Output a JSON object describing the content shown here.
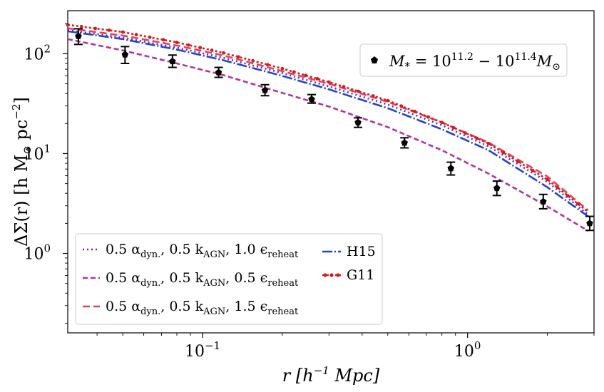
{
  "chart_data": {
    "type": "line",
    "xscale": "log",
    "yscale": "log",
    "xlim": [
      0.031,
      3.0
    ],
    "ylim": [
      0.16,
      270
    ],
    "xlabel": "r [h⁻¹ Mpc]",
    "ylabel": "ΔΣ(r) [h M⊙ pc⁻²]",
    "x_ticks": [
      {
        "value": 0.1,
        "base": "10",
        "exp": "−1"
      },
      {
        "value": 1.0,
        "base": "10",
        "exp": "0"
      }
    ],
    "y_ticks": [
      {
        "value": 1,
        "base": "10",
        "exp": "0"
      },
      {
        "value": 10,
        "base": "10",
        "exp": "1"
      },
      {
        "value": 100,
        "base": "10",
        "exp": "2"
      }
    ],
    "observations": {
      "label_main": "M",
      "label_sub": "*",
      "label_mid": " = 10",
      "label_exp1": "11.2",
      "label_dash": " − 10",
      "label_exp2": "11.4",
      "label_end": "M",
      "label_end_sub": "⊙",
      "color": "#000000",
      "points": [
        {
          "x": 0.034,
          "y": 150,
          "lo": 124,
          "hi": 178
        },
        {
          "x": 0.051,
          "y": 98,
          "lo": 80,
          "hi": 118
        },
        {
          "x": 0.077,
          "y": 84,
          "lo": 73,
          "hi": 97
        },
        {
          "x": 0.115,
          "y": 65,
          "lo": 58,
          "hi": 73
        },
        {
          "x": 0.172,
          "y": 43,
          "lo": 38,
          "hi": 49
        },
        {
          "x": 0.258,
          "y": 35,
          "lo": 32,
          "hi": 39
        },
        {
          "x": 0.386,
          "y": 20.5,
          "lo": 18.3,
          "hi": 22.8
        },
        {
          "x": 0.578,
          "y": 12.8,
          "lo": 11.4,
          "hi": 14.4
        },
        {
          "x": 0.865,
          "y": 7.1,
          "lo": 6.1,
          "hi": 8.2
        },
        {
          "x": 1.29,
          "y": 4.5,
          "lo": 3.8,
          "hi": 5.3
        },
        {
          "x": 1.93,
          "y": 3.3,
          "lo": 2.8,
          "hi": 3.9
        },
        {
          "x": 2.89,
          "y": 2.0,
          "lo": 1.7,
          "hi": 2.35
        }
      ]
    },
    "series": [
      {
        "name": "purple-dotted",
        "label_pre": "0.5 α",
        "label_sub1": "dyn.",
        "label_mid": ", 0.5 k",
        "label_sub2": "AGN",
        "label_post": ", 1.0 ϵ",
        "label_sub3": "reheat",
        "color": "#7a1fa2",
        "dash": "2,4",
        "x": [
          0.031,
          0.05,
          0.08,
          0.12,
          0.2,
          0.3,
          0.5,
          0.8,
          1.2,
          2.0,
          2.85
        ],
        "y": [
          172,
          145,
          115,
          91,
          64,
          47,
          31,
          19.2,
          11.8,
          5.2,
          2.45
        ]
      },
      {
        "name": "magenta-dashed",
        "label_pre": "0.5 α",
        "label_sub1": "dyn.",
        "label_mid": ", 0.5 k",
        "label_sub2": "AGN",
        "label_post": ", 0.5 ϵ",
        "label_sub3": "reheat",
        "color": "#b5339c",
        "dash": "7,4",
        "x": [
          0.031,
          0.05,
          0.08,
          0.12,
          0.2,
          0.3,
          0.5,
          0.8,
          1.2,
          2.0,
          2.85
        ],
        "y": [
          140,
          108,
          80,
          61,
          40.5,
          29.6,
          18.4,
          10.8,
          6.3,
          2.95,
          1.68
        ]
      },
      {
        "name": "pink-dashed",
        "label_pre": "0.5 α",
        "label_sub1": "dyn.",
        "label_mid": ", 0.5 k",
        "label_sub2": "AGN",
        "label_post": ", 1.5 ϵ",
        "label_sub3": "reheat",
        "color": "#e0435c",
        "dash": "10,5",
        "x": [
          0.031,
          0.05,
          0.08,
          0.12,
          0.2,
          0.3,
          0.5,
          0.8,
          1.2,
          2.0,
          2.85
        ],
        "y": [
          180,
          152,
          121,
          96,
          67,
          50,
          33,
          20.5,
          12.9,
          5.9,
          2.7
        ]
      },
      {
        "name": "H15",
        "label_plain": "H15",
        "color": "#1f45d1",
        "dash": "14,3,2,3",
        "x": [
          0.031,
          0.05,
          0.08,
          0.12,
          0.2,
          0.3,
          0.5,
          0.8,
          1.2,
          2.0,
          2.85
        ],
        "y": [
          168,
          140,
          110,
          86,
          60,
          44,
          28.5,
          17.5,
          10.8,
          4.6,
          2.35
        ]
      },
      {
        "name": "G11",
        "label_plain": "G11",
        "color": "#d11d1d",
        "dash": "3,3",
        "markers": true,
        "x": [
          0.031,
          0.05,
          0.08,
          0.12,
          0.2,
          0.3,
          0.5,
          0.8,
          1.2,
          2.0,
          2.85
        ],
        "y": [
          195,
          165,
          130,
          102,
          71,
          52,
          34,
          20.5,
          12.6,
          5.5,
          2.6
        ]
      }
    ]
  }
}
